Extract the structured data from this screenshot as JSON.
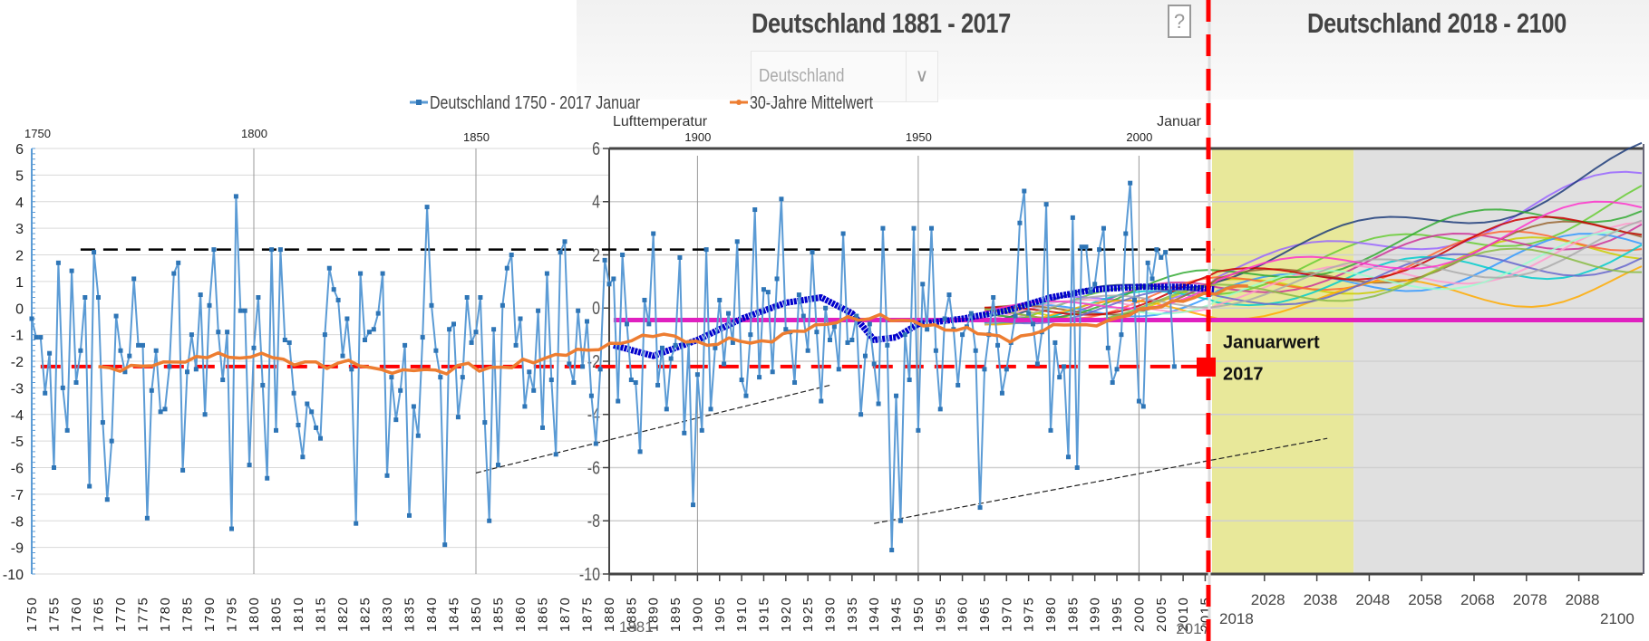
{
  "header": {
    "title_left": "Deutschland 1881 - 2017",
    "title_right": "Deutschland 2018 - 2100",
    "region_select": "Deutschland",
    "help_label": "?"
  },
  "annotation": {
    "label_line1": "Januarwert",
    "label_line2": "2017"
  },
  "colors": {
    "series_blue": "#5b9bd5",
    "mean_orange": "#ed7d31",
    "smooth_darkblue": "#0000cc",
    "ref_red": "#ff0000",
    "ref_black": "#000000",
    "ref_magenta": "#e020c0",
    "period_yellow": "#e8e89a",
    "period_gray": "#e0e0e0"
  },
  "chart_data": [
    {
      "type": "line",
      "title": "",
      "legend": [
        "Deutschland 1750 - 2017 Januar",
        "30-Jahre Mittelwert"
      ],
      "legend_position": "top",
      "xlabel": "",
      "ylabel": "",
      "ylim": [
        -10,
        6
      ],
      "yticks": [
        6,
        5,
        4,
        3,
        2,
        1,
        0,
        -1,
        -2,
        -3,
        -4,
        -5,
        -6,
        -7,
        -8,
        -9,
        -10
      ],
      "x_top_labels": [
        "1750",
        "1800",
        "1850"
      ],
      "x_tick_labels": [
        "1750",
        "1755",
        "1760",
        "1765",
        "1770",
        "1775",
        "1780",
        "1785",
        "1790",
        "1795",
        "1800",
        "1805",
        "1810",
        "1815",
        "1820",
        "1825",
        "1830",
        "1835",
        "1840",
        "1845",
        "1850",
        "1855",
        "1860",
        "1865",
        "1870",
        "1875",
        "1880"
      ],
      "grid": true,
      "x_start": 1750,
      "series": [
        {
          "name": "Deutschland 1750 - 2017 Januar",
          "values": [
            -0.4,
            -1.1,
            -1.1,
            -3.2,
            -1.7,
            -6.0,
            1.7,
            -3.0,
            -4.6,
            1.4,
            -2.8,
            -1.6,
            0.4,
            -6.7,
            2.1,
            0.4,
            -4.3,
            -7.2,
            -5.0,
            -0.3,
            -1.6,
            -2.4,
            -1.8,
            1.1,
            -1.4,
            -1.4,
            -7.9,
            -3.1,
            -1.6,
            -3.9,
            -3.8,
            -2.2,
            1.3,
            1.7,
            -6.1,
            -2.4,
            -1.0,
            -2.3,
            0.5,
            -4.0,
            0.1,
            2.2,
            -0.9,
            -2.7,
            -0.9,
            -8.3,
            4.2,
            -0.1,
            -0.1,
            -5.9,
            -1.5,
            0.4,
            -2.9,
            -6.4,
            2.2,
            -4.6,
            2.2,
            -1.2,
            -1.3,
            -3.2,
            -4.4,
            -5.6,
            -3.6,
            -3.9,
            -4.5,
            -4.9,
            -1.0,
            1.5,
            0.7,
            0.3,
            -1.8,
            -0.4,
            -2.3,
            -8.1,
            1.3,
            -1.2,
            -0.9,
            -0.8,
            -0.2,
            1.3,
            -6.3,
            -2.6,
            -4.2,
            -3.1,
            -1.4,
            -7.8,
            -3.7,
            -4.8,
            -1.1,
            3.8,
            0.1,
            -1.6,
            -2.6,
            -8.9,
            -0.8,
            -0.6,
            -4.1,
            -2.6,
            0.4,
            -1.3,
            -0.9,
            0.4,
            -4.3,
            -8.0,
            -0.8,
            -5.9,
            0.1,
            1.5,
            2.0,
            -1.4,
            -0.4,
            -3.7,
            -2.4,
            -3.1,
            -0.1,
            -4.5,
            1.3,
            -2.7,
            -5.5,
            2.1,
            2.5,
            -2.1,
            -2.8,
            -0.1,
            -2.2,
            -0.5,
            -3.3,
            -5.1,
            -2.3,
            1.8,
            0.9,
            1.1,
            -3.5,
            2.0,
            -0.6,
            -2.7,
            -2.8,
            -5.4,
            0.3,
            -0.6,
            2.8,
            -2.9,
            -1.5,
            -3.8,
            -1.9,
            -1.4,
            1.9,
            -4.7,
            -1.3,
            -7.4,
            -2.5,
            -4.6,
            2.2,
            -3.8,
            -1.5,
            0.3,
            -2.1,
            -0.2,
            -1.3,
            2.5,
            -2.7,
            -3.3,
            -1.0,
            3.7,
            -2.6,
            0.7,
            0.6,
            -2.4,
            1.1,
            4.1,
            -0.8,
            -0.9,
            -2.8,
            0.5,
            -0.3,
            -1.6,
            2.1,
            -0.9,
            -3.5,
            0.0,
            -1.2,
            -0.7,
            -2.3,
            2.8,
            -1.3,
            -1.2,
            -0.3,
            -4.0,
            -1.8,
            -0.6,
            -2.1,
            -3.6,
            3.0,
            -1.4,
            -9.1,
            -3.3,
            -8.0,
            -1.0,
            -2.7,
            3.0,
            -4.6,
            0.9,
            -0.8,
            3.0,
            -1.6,
            -3.8,
            -0.4,
            0.5,
            -0.8,
            -2.9,
            -1.0,
            -0.7,
            -0.2,
            -1.6,
            -7.5,
            -2.3,
            -1.0,
            0.4,
            -1.4,
            -3.2,
            -2.3,
            -1.3,
            -0.3,
            3.2,
            4.4,
            -0.2,
            -0.6,
            -2.1,
            -0.9,
            3.9,
            -4.6,
            -1.3,
            -2.6,
            -2.2,
            -5.6,
            3.4,
            -6.0,
            2.3,
            2.3,
            0.6,
            0.9,
            2.2,
            3.0,
            -1.5,
            -2.8,
            -2.3,
            -1.0,
            2.8,
            4.7,
            0.3,
            -3.5,
            -3.7,
            1.7,
            1.1,
            2.2,
            1.9,
            2.1,
            0.6,
            -2.2
          ]
        },
        {
          "name": "30-Jahre Mittelwert",
          "values_from_1765": [
            -2.2,
            -2.3,
            -2.3,
            -2.2,
            -2.2,
            -2.1,
            -2.1,
            -2.0,
            -2.0,
            -1.9,
            -1.8,
            -1.7,
            -1.9,
            -1.8,
            -1.9,
            -1.7,
            -1.8,
            -2.0,
            -2.1,
            -2.0,
            -2.1,
            -2.2,
            -2.1,
            -2.0,
            -2.1,
            -2.3,
            -2.3,
            -2.4,
            -2.4,
            -2.3,
            -2.3,
            -2.4,
            -2.4,
            -2.2,
            -2.1,
            -2.3,
            -2.3,
            -2.2,
            -2.2,
            -2.0,
            -2.0,
            -1.9,
            -1.8,
            -1.7,
            -1.6,
            -1.6,
            -1.5,
            -1.4,
            -1.3,
            -1.2,
            -1.1,
            -1.0,
            -1.0,
            -1.1,
            -1.2,
            -1.3,
            -1.4,
            -1.3,
            -1.2,
            -1.2,
            -1.3,
            -1.3,
            -1.2,
            -1.0,
            -0.9,
            -0.8,
            -0.7,
            -0.6,
            -0.5,
            -0.4,
            -0.4,
            -0.4,
            -0.3,
            -0.4,
            -0.5,
            -0.5,
            -0.6,
            -0.7,
            -0.8,
            -0.8,
            -0.8,
            -0.9,
            -1.0,
            -1.1,
            -1.2,
            -1.1,
            -1.0,
            -0.8,
            -0.7,
            -0.6,
            -0.6,
            -0.7,
            -0.6,
            -0.5,
            -0.4,
            -0.2,
            -0.1,
            0.0,
            0.1,
            0.2,
            0.3,
            0.4,
            0.5,
            0.6,
            0.7,
            0.8,
            0.9
          ]
        }
      ]
    },
    {
      "type": "line",
      "title": "Deutschland 1881 - 2017",
      "ylabel": "Lufttemperatur",
      "subtitle_right": "Januar",
      "ylim": [
        -10,
        6
      ],
      "yticks": [
        6,
        4,
        2,
        0,
        -2,
        -4,
        -6,
        -8,
        -10
      ],
      "x_top_labels": [
        "1900",
        "1950",
        "2000"
      ],
      "x_tick_labels": [
        "1880",
        "1885",
        "1890",
        "1895",
        "1900",
        "1905",
        "1910",
        "1915",
        "1920",
        "1925",
        "1930",
        "1935",
        "1940",
        "1945",
        "1950",
        "1955",
        "1960",
        "1965",
        "1970",
        "1975",
        "1980",
        "1985",
        "1990",
        "1995",
        "2000",
        "2005",
        "2010",
        "2015"
      ],
      "x_range_labels": [
        "1881",
        "2017"
      ],
      "reference_lines": [
        {
          "name": "upper-black-dashed",
          "y": 2.2,
          "style": "dashed"
        },
        {
          "name": "lower-red-dashed",
          "y": -2.2,
          "style": "dashed"
        },
        {
          "name": "magenta-reference",
          "y": -0.45,
          "style": "solid"
        }
      ],
      "smooth_curve_darkblue": {
        "x": [
          1881,
          1890,
          1900,
          1910,
          1920,
          1928,
          1935,
          1940,
          1945,
          1950,
          1960,
          1970,
          1980,
          1990,
          2000,
          2010,
          2017
        ],
        "y": [
          -1.4,
          -1.8,
          -1.2,
          -0.4,
          0.2,
          0.4,
          -0.2,
          -1.2,
          -1.1,
          -0.6,
          -0.4,
          -0.1,
          0.4,
          0.7,
          0.8,
          0.8,
          0.7
        ]
      },
      "trend_lines": [
        {
          "x": [
            1850,
            1930
          ],
          "y": [
            -6.2,
            -2.9
          ]
        },
        {
          "x": [
            1940,
            2040
          ],
          "y": [
            -8.1,
            -4.9
          ]
        }
      ],
      "marker": {
        "label": "Januarwert 2017",
        "x": 2017,
        "y": -2.2
      }
    },
    {
      "type": "line",
      "title": "Deutschland 2018 - 2100",
      "x_tick_labels": [
        "2028",
        "2038",
        "2048",
        "2058",
        "2068",
        "2078",
        "2088"
      ],
      "x_range_labels": [
        "2018",
        "2100"
      ],
      "ylim": [
        -10,
        6
      ],
      "shaded_periods": [
        {
          "from": 2018,
          "to": 2045,
          "color": "yellow"
        },
        {
          "from": 2045,
          "to": 2100,
          "color": "gray"
        }
      ],
      "projection_count": 18
    }
  ]
}
